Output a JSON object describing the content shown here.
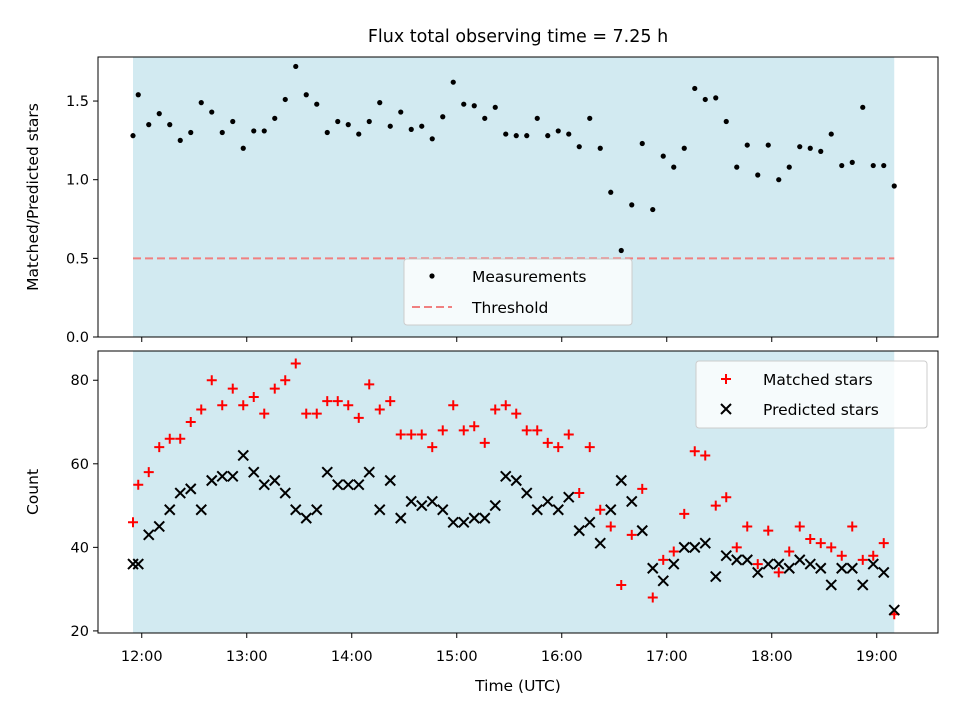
{
  "chart_data": [
    {
      "type": "scatter",
      "title": "Flux total observing time = 7.25 h",
      "xlabel": "",
      "ylabel": "Matched/Predicted stars",
      "xlim": [
        "11:35",
        "19:35"
      ],
      "ylim": [
        0,
        1.78
      ],
      "yticks": [
        0.0,
        0.5,
        1.0,
        1.5
      ],
      "ytick_labels": [
        "0.0",
        "0.5",
        "1.0",
        "1.5"
      ],
      "shaded_span": [
        "11:55",
        "19:10"
      ],
      "shade_color": "#add8e6",
      "legend_position": "lower-center",
      "threshold": {
        "name": "Threshold",
        "value": 0.5,
        "color": "#f08080"
      },
      "series": [
        {
          "name": "Measurements",
          "color": "#000000",
          "marker": "dot",
          "x": [
            "11:55",
            "11:58",
            "12:04",
            "12:10",
            "12:16",
            "12:22",
            "12:28",
            "12:34",
            "12:40",
            "12:46",
            "12:52",
            "12:58",
            "13:04",
            "13:10",
            "13:16",
            "13:22",
            "13:28",
            "13:34",
            "13:40",
            "13:46",
            "13:52",
            "13:58",
            "14:04",
            "14:10",
            "14:16",
            "14:22",
            "14:28",
            "14:34",
            "14:40",
            "14:46",
            "14:52",
            "14:58",
            "15:04",
            "15:10",
            "15:16",
            "15:22",
            "15:28",
            "15:34",
            "15:40",
            "15:46",
            "15:52",
            "15:58",
            "16:04",
            "16:10",
            "16:16",
            "16:22",
            "16:28",
            "16:34",
            "16:40",
            "16:46",
            "16:52",
            "16:58",
            "17:04",
            "17:10",
            "17:16",
            "17:22",
            "17:28",
            "17:34",
            "17:40",
            "17:46",
            "17:52",
            "17:58",
            "18:04",
            "18:10",
            "18:16",
            "18:22",
            "18:28",
            "18:34",
            "18:40",
            "18:46",
            "18:52",
            "18:58",
            "19:04",
            "19:10"
          ],
          "y": [
            1.28,
            1.54,
            1.35,
            1.42,
            1.35,
            1.25,
            1.3,
            1.49,
            1.43,
            1.3,
            1.37,
            1.2,
            1.31,
            1.31,
            1.39,
            1.51,
            1.72,
            1.54,
            1.48,
            1.3,
            1.37,
            1.35,
            1.29,
            1.37,
            1.49,
            1.34,
            1.43,
            1.32,
            1.34,
            1.26,
            1.4,
            1.62,
            1.48,
            1.47,
            1.39,
            1.46,
            1.29,
            1.28,
            1.28,
            1.39,
            1.28,
            1.31,
            1.29,
            1.21,
            1.39,
            1.2,
            0.92,
            0.55,
            0.84,
            1.23,
            0.81,
            1.15,
            1.08,
            1.2,
            1.58,
            1.51,
            1.52,
            1.37,
            1.08,
            1.22,
            1.03,
            1.22,
            1.0,
            1.08,
            1.21,
            1.2,
            1.18,
            1.29,
            1.09,
            1.11,
            1.46,
            1.09,
            1.09,
            0.96
          ]
        }
      ]
    },
    {
      "type": "scatter",
      "title": "",
      "xlabel": "Time (UTC)",
      "ylabel": "Count",
      "xlim": [
        "11:35",
        "19:35"
      ],
      "ylim": [
        19.5,
        87
      ],
      "yticks": [
        20,
        40,
        60,
        80
      ],
      "ytick_labels": [
        "20",
        "40",
        "60",
        "80"
      ],
      "xticks": [
        "12:00",
        "13:00",
        "14:00",
        "15:00",
        "16:00",
        "17:00",
        "18:00",
        "19:00"
      ],
      "shaded_span": [
        "11:55",
        "19:10"
      ],
      "shade_color": "#add8e6",
      "legend_position": "top-right",
      "series": [
        {
          "name": "Matched stars",
          "color": "#ff0000",
          "marker": "plus",
          "x": [
            "11:55",
            "11:58",
            "12:04",
            "12:10",
            "12:16",
            "12:22",
            "12:28",
            "12:34",
            "12:40",
            "12:46",
            "12:52",
            "12:58",
            "13:04",
            "13:10",
            "13:16",
            "13:22",
            "13:28",
            "13:34",
            "13:40",
            "13:46",
            "13:52",
            "13:58",
            "14:04",
            "14:10",
            "14:16",
            "14:22",
            "14:28",
            "14:34",
            "14:40",
            "14:46",
            "14:52",
            "14:58",
            "15:04",
            "15:10",
            "15:16",
            "15:22",
            "15:28",
            "15:34",
            "15:40",
            "15:46",
            "15:52",
            "15:58",
            "16:04",
            "16:10",
            "16:16",
            "16:22",
            "16:28",
            "16:34",
            "16:40",
            "16:46",
            "16:52",
            "16:58",
            "17:04",
            "17:10",
            "17:16",
            "17:22",
            "17:28",
            "17:34",
            "17:40",
            "17:46",
            "17:52",
            "17:58",
            "18:04",
            "18:10",
            "18:16",
            "18:22",
            "18:28",
            "18:34",
            "18:40",
            "18:46",
            "18:52",
            "18:58",
            "19:04",
            "19:10"
          ],
          "y": [
            46,
            55,
            58,
            64,
            66,
            66,
            70,
            73,
            80,
            74,
            78,
            74,
            76,
            72,
            78,
            80,
            84,
            72,
            72,
            75,
            75,
            74,
            71,
            79,
            73,
            75,
            67,
            67,
            67,
            64,
            68,
            74,
            68,
            69,
            65,
            73,
            74,
            72,
            68,
            68,
            65,
            64,
            67,
            53,
            64,
            49,
            45,
            31,
            43,
            54,
            28,
            37,
            39,
            48,
            63,
            62,
            50,
            52,
            40,
            45,
            36,
            44,
            34,
            39,
            45,
            42,
            41,
            40,
            38,
            45,
            37,
            38,
            41,
            24
          ]
        },
        {
          "name": "Predicted stars",
          "color": "#000000",
          "marker": "x",
          "x": [
            "11:55",
            "11:58",
            "12:04",
            "12:10",
            "12:16",
            "12:22",
            "12:28",
            "12:34",
            "12:40",
            "12:46",
            "12:52",
            "12:58",
            "13:04",
            "13:10",
            "13:16",
            "13:22",
            "13:28",
            "13:34",
            "13:40",
            "13:46",
            "13:52",
            "13:58",
            "14:04",
            "14:10",
            "14:16",
            "14:22",
            "14:28",
            "14:34",
            "14:40",
            "14:46",
            "14:52",
            "14:58",
            "15:04",
            "15:10",
            "15:16",
            "15:22",
            "15:28",
            "15:34",
            "15:40",
            "15:46",
            "15:52",
            "15:58",
            "16:04",
            "16:10",
            "16:16",
            "16:22",
            "16:28",
            "16:34",
            "16:40",
            "16:46",
            "16:52",
            "16:58",
            "17:04",
            "17:10",
            "17:16",
            "17:22",
            "17:28",
            "17:34",
            "17:40",
            "17:46",
            "17:52",
            "17:58",
            "18:04",
            "18:10",
            "18:16",
            "18:22",
            "18:28",
            "18:34",
            "18:40",
            "18:46",
            "18:52",
            "18:58",
            "19:04",
            "19:10"
          ],
          "y": [
            36,
            36,
            43,
            45,
            49,
            53,
            54,
            49,
            56,
            57,
            57,
            62,
            58,
            55,
            56,
            53,
            49,
            47,
            49,
            58,
            55,
            55,
            55,
            58,
            49,
            56,
            47,
            51,
            50,
            51,
            49,
            46,
            46,
            47,
            47,
            50,
            57,
            56,
            53,
            49,
            51,
            49,
            52,
            44,
            46,
            41,
            49,
            56,
            51,
            44,
            35,
            32,
            36,
            40,
            40,
            41,
            33,
            38,
            37,
            37,
            34,
            36,
            36,
            35,
            37,
            36,
            35,
            31,
            35,
            35,
            31,
            36,
            34,
            25
          ]
        }
      ]
    }
  ]
}
